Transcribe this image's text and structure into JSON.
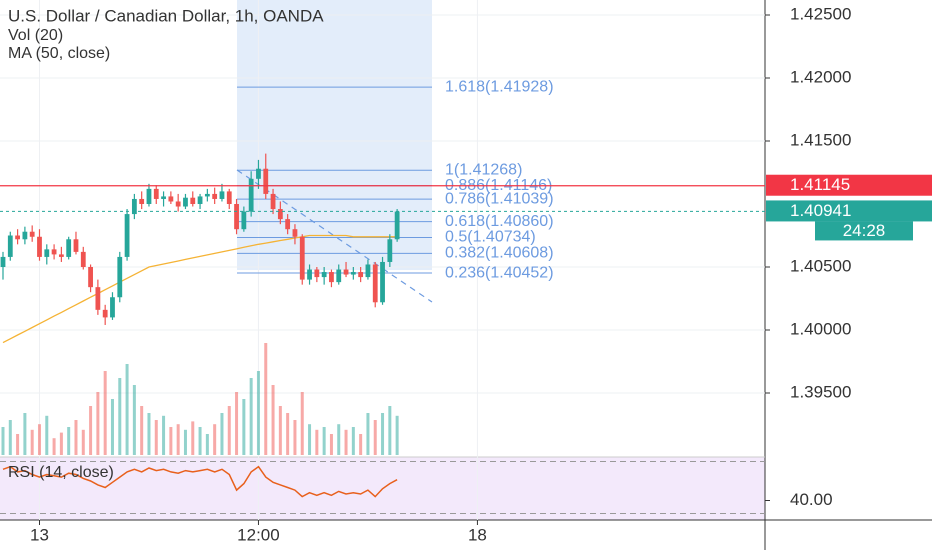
{
  "chart_data": {
    "type": "candlestick",
    "title": "U.S. Dollar / Canadian Dollar, 1h, OANDA",
    "volume_label": "Vol (20)",
    "ma_label": "MA (50, close)",
    "rsi_label": "RSI (14, close)",
    "up_color": "#26a69a",
    "down_color": "#ef5350",
    "ma_color": "#f5b335",
    "rsi_color": "#e8601c",
    "fib_color": "#6d9be0",
    "xlim": [
      -0.41,
      104.4
    ],
    "xticks": [
      {
        "value": 5,
        "label": "13"
      },
      {
        "value": 35,
        "label": "12:00"
      },
      {
        "value": 65,
        "label": "18"
      }
    ],
    "ylim": [
      1.39008,
      1.42619
    ],
    "yticks": [
      {
        "value": 1.425,
        "label": "1.42500"
      },
      {
        "value": 1.42,
        "label": "1.42000"
      },
      {
        "value": 1.415,
        "label": "1.41500"
      },
      {
        "value": 1.405,
        "label": "1.40500"
      },
      {
        "value": 1.4,
        "label": "1.40000"
      },
      {
        "value": 1.395,
        "label": "1.39500"
      }
    ],
    "x": [
      0,
      1,
      2,
      3,
      4,
      5,
      6,
      7,
      8,
      9,
      10,
      11,
      12,
      13,
      14,
      15,
      16,
      17,
      18,
      19,
      20,
      21,
      22,
      23,
      24,
      25,
      26,
      27,
      28,
      29,
      30,
      31,
      32,
      33,
      34,
      35,
      36,
      37,
      38,
      39,
      40,
      41,
      42,
      43,
      44,
      45,
      46,
      47,
      48,
      49,
      50,
      51,
      52,
      53,
      54
    ],
    "open": [
      1.405,
      1.4058,
      1.4075,
      1.4072,
      1.4078,
      1.4074,
      1.4058,
      1.4064,
      1.406,
      1.4058,
      1.4072,
      1.4062,
      1.405,
      1.4034,
      1.4016,
      1.401,
      1.4026,
      1.4058,
      1.4092,
      1.4104,
      1.41,
      1.4112,
      1.4104,
      1.4106,
      1.4102,
      1.4098,
      1.4105,
      1.41,
      1.4106,
      1.4108,
      1.4104,
      1.411,
      1.41,
      1.408,
      1.4094,
      1.412,
      1.4128,
      1.4108,
      1.4096,
      1.4088,
      1.408,
      1.4074,
      1.404,
      1.4048,
      1.4042,
      1.4046,
      1.4038,
      1.4048,
      1.4044,
      1.4046,
      1.4042,
      1.4052,
      1.4022,
      1.4054,
      1.4072
    ],
    "high": [
      1.4062,
      1.4078,
      1.408,
      1.4082,
      1.4083,
      1.408,
      1.4068,
      1.4068,
      1.4066,
      1.4074,
      1.4078,
      1.4066,
      1.4052,
      1.404,
      1.402,
      1.403,
      1.4062,
      1.4096,
      1.4108,
      1.411,
      1.4116,
      1.4115,
      1.411,
      1.411,
      1.4108,
      1.4108,
      1.411,
      1.4108,
      1.4112,
      1.4113,
      1.4116,
      1.4112,
      1.4104,
      1.4098,
      1.4126,
      1.4135,
      1.414,
      1.4112,
      1.4102,
      1.4092,
      1.4084,
      1.4076,
      1.4052,
      1.405,
      1.405,
      1.4048,
      1.4052,
      1.4054,
      1.405,
      1.405,
      1.4056,
      1.4054,
      1.4058,
      1.4076,
      1.4096
    ],
    "low": [
      1.404,
      1.4055,
      1.4068,
      1.4068,
      1.407,
      1.4055,
      1.4052,
      1.4056,
      1.4054,
      1.4056,
      1.406,
      1.4048,
      1.403,
      1.4012,
      1.4004,
      1.4008,
      1.4022,
      1.4055,
      1.4088,
      1.4096,
      1.4098,
      1.41,
      1.4098,
      1.41,
      1.4094,
      1.4096,
      1.4098,
      1.4096,
      1.4102,
      1.41,
      1.4102,
      1.4096,
      1.4076,
      1.4078,
      1.409,
      1.4112,
      1.4104,
      1.4092,
      1.4084,
      1.4076,
      1.4068,
      1.4036,
      1.4036,
      1.4038,
      1.4036,
      1.4034,
      1.4036,
      1.4042,
      1.404,
      1.4038,
      1.404,
      1.4018,
      1.402,
      1.405,
      1.407
    ],
    "close": [
      1.4058,
      1.4075,
      1.4072,
      1.4078,
      1.4074,
      1.4058,
      1.4064,
      1.406,
      1.4058,
      1.4072,
      1.4062,
      1.405,
      1.4034,
      1.4016,
      1.401,
      1.4026,
      1.4058,
      1.4092,
      1.4104,
      1.41,
      1.4112,
      1.4104,
      1.4106,
      1.4102,
      1.4098,
      1.4105,
      1.41,
      1.4106,
      1.4108,
      1.4104,
      1.411,
      1.41,
      1.408,
      1.4094,
      1.412,
      1.4128,
      1.4108,
      1.4096,
      1.4088,
      1.408,
      1.4074,
      1.404,
      1.4048,
      1.4042,
      1.4046,
      1.4038,
      1.4048,
      1.4044,
      1.4046,
      1.4042,
      1.4052,
      1.4022,
      1.4054,
      1.4072,
      1.4094
    ],
    "volume_lim": [
      0,
      100
    ],
    "volume": [
      20,
      25,
      15,
      30,
      18,
      22,
      28,
      12,
      16,
      20,
      25,
      18,
      35,
      45,
      60,
      40,
      55,
      65,
      50,
      35,
      30,
      25,
      28,
      20,
      22,
      18,
      24,
      20,
      15,
      22,
      30,
      35,
      45,
      40,
      55,
      60,
      80,
      50,
      35,
      30,
      25,
      45,
      22,
      18,
      20,
      15,
      22,
      18,
      20,
      15,
      30,
      25,
      30,
      35,
      28
    ],
    "ma": [
      1.399,
      1.3993,
      1.3996,
      1.3999,
      1.4002,
      1.4005,
      1.4008,
      1.4011,
      1.4014,
      1.4017,
      1.402,
      1.4023,
      1.4026,
      1.4029,
      1.4032,
      1.4035,
      1.4038,
      1.4041,
      1.4044,
      1.4047,
      1.405,
      1.40512,
      1.40524,
      1.40536,
      1.40548,
      1.4056,
      1.40572,
      1.40584,
      1.40596,
      1.40608,
      1.4062,
      1.40632,
      1.40644,
      1.40656,
      1.40668,
      1.4068,
      1.4069,
      1.407,
      1.4071,
      1.4072,
      1.4073,
      1.4074,
      1.4075,
      1.4075,
      1.4075,
      1.4075,
      1.4075,
      1.4075,
      1.4074,
      1.4074,
      1.4074,
      1.4074,
      1.4074,
      1.4074,
      1.4074
    ],
    "rsi_lim": [
      25,
      75
    ],
    "rsi_ticks": [
      {
        "value": 40,
        "label": "40.00"
      }
    ],
    "rsi_bands": [
      70,
      30
    ],
    "rsi": [
      64,
      66,
      62,
      63,
      60,
      58,
      60,
      59,
      58,
      61,
      60,
      57,
      55,
      52,
      50,
      54,
      58,
      62,
      64,
      62,
      65,
      63,
      64,
      62,
      61,
      63,
      62,
      63,
      64,
      62,
      64,
      60,
      48,
      53,
      62,
      66,
      58,
      54,
      52,
      50,
      48,
      43,
      46,
      44,
      46,
      44,
      47,
      45,
      46,
      45,
      48,
      43,
      49,
      53,
      56
    ],
    "fib": [
      {
        "value": 1.41928,
        "label": "1.618(1.41928)"
      },
      {
        "value": 1.41268,
        "label": "1(1.41268)"
      },
      {
        "value": 1.41146,
        "label": "0.886(1.41146)"
      },
      {
        "value": 1.41039,
        "label": "0.786(1.41039)"
      },
      {
        "value": 1.4086,
        "label": "0.618(1.40860)"
      },
      {
        "value": 1.40734,
        "label": "0.5(1.40734)"
      },
      {
        "value": 1.40608,
        "label": "0.382(1.40608)"
      },
      {
        "value": 1.40452,
        "label": "0.236(1.40452)"
      }
    ],
    "alert_line": 1.41145,
    "alert_color": "#f23645",
    "last_price": 1.40941,
    "countdown": "24:28"
  }
}
